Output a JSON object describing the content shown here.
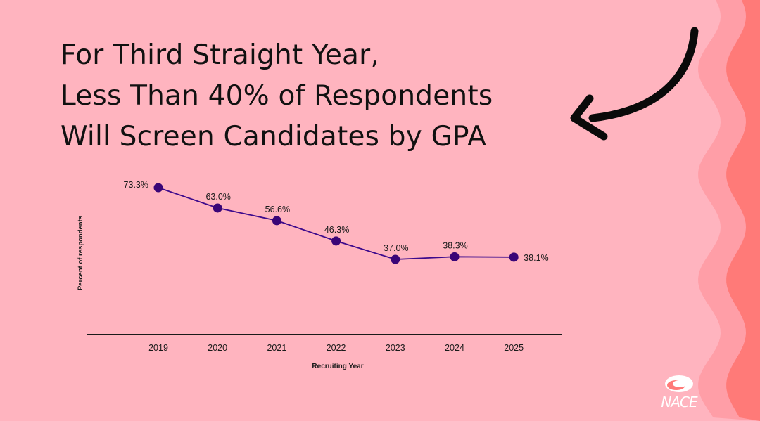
{
  "headline": {
    "line1": "For Third Straight Year,",
    "line2": "Less Than 40% of Respondents",
    "line3": "Will Screen Candidates by GPA"
  },
  "colors": {
    "background": "#ffb4bf",
    "wave_light": "#ff9ea7",
    "wave_dark": "#ff7a78",
    "series": "#3d0a8c",
    "marker": "#3a0577",
    "text": "#1a1a1a"
  },
  "logo": {
    "text": "NACE"
  },
  "chart_data": {
    "type": "line",
    "xlabel": "Recruiting Year",
    "ylabel": "Percent of respondents",
    "categories": [
      "2019",
      "2020",
      "2021",
      "2022",
      "2023",
      "2024",
      "2025"
    ],
    "values": [
      73.3,
      63.0,
      56.6,
      46.3,
      37.0,
      38.3,
      38.1
    ],
    "data_labels": [
      "73.3%",
      "63.0%",
      "56.6%",
      "46.3%",
      "37.0%",
      "38.3%",
      "38.1%"
    ],
    "ylim": [
      0,
      90
    ],
    "grid": false,
    "legend": "none"
  }
}
